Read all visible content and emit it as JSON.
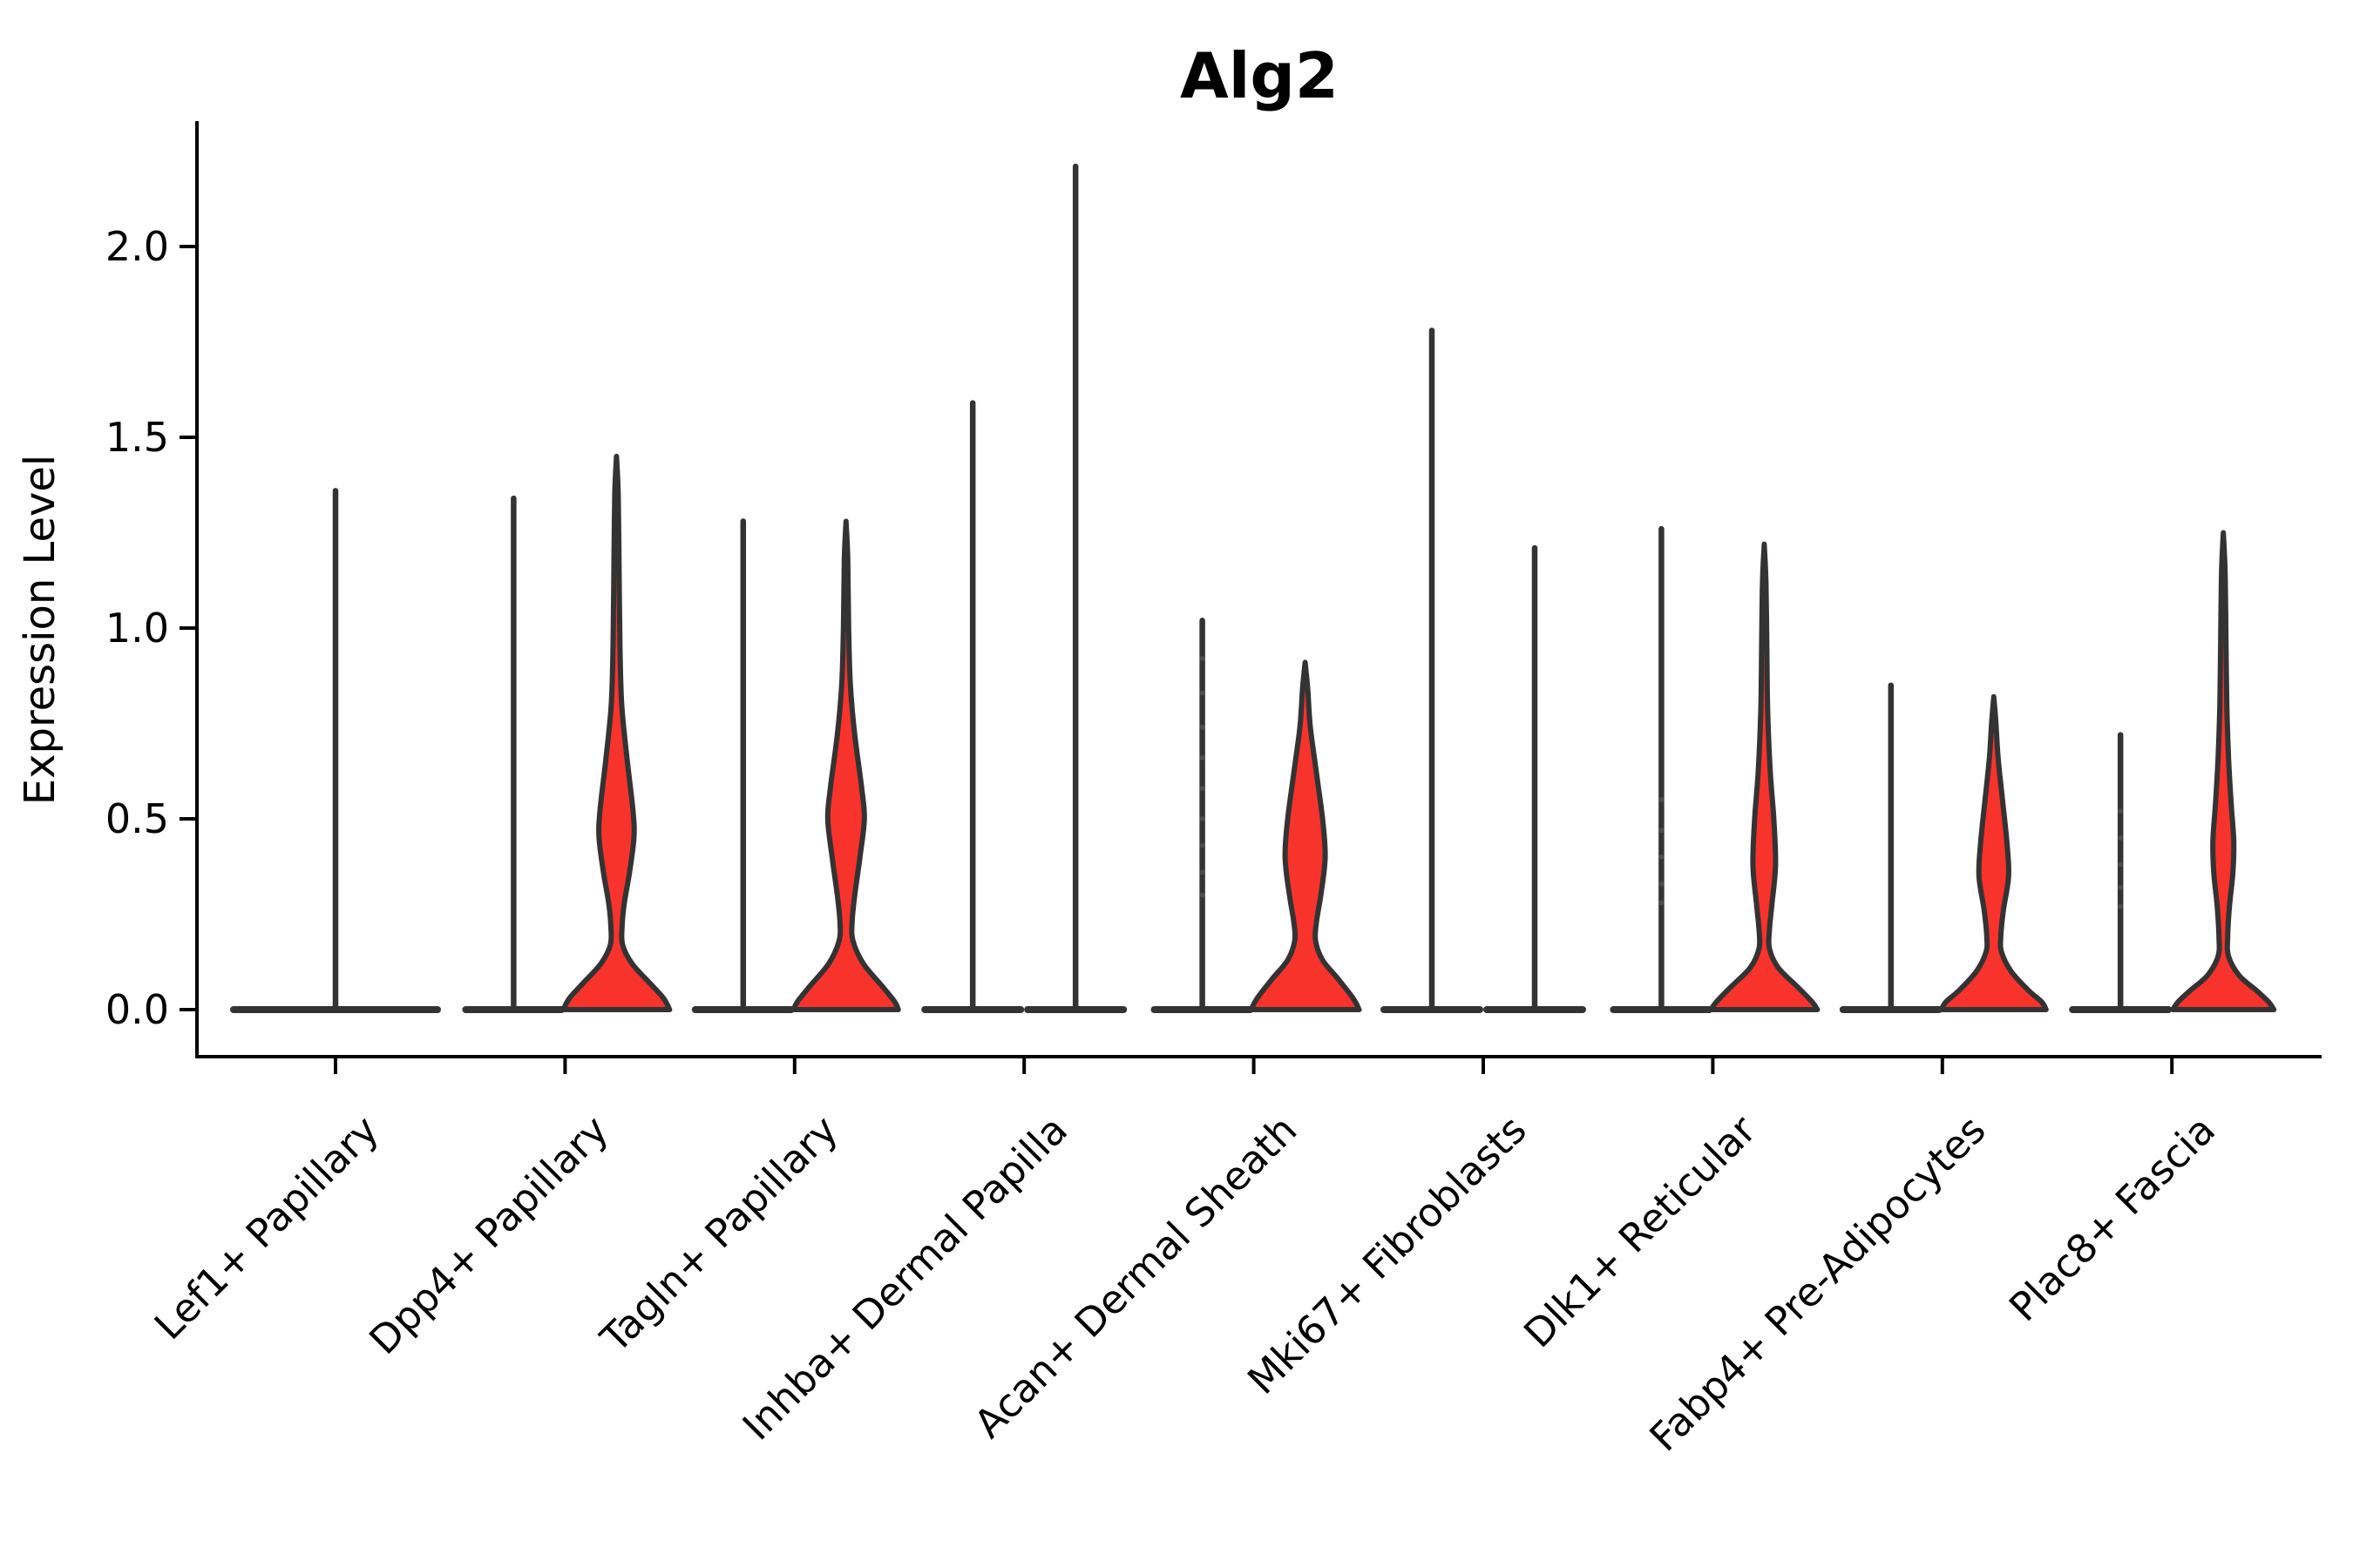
{
  "title": "Alg2",
  "y_axis": {
    "label": "Expression Level",
    "tick_labels": [
      "0.0",
      "0.5",
      "1.0",
      "1.5",
      "2.0"
    ],
    "tick_values": [
      0.0,
      0.5,
      1.0,
      1.5,
      2.0
    ]
  },
  "chart_data": {
    "type": "violin",
    "title": "Alg2",
    "ylabel": "Expression Level",
    "ylim": [
      0.0,
      2.3
    ],
    "yticks": [
      0.0,
      0.5,
      1.0,
      1.5,
      2.0
    ],
    "grid": false,
    "legend": "none",
    "fill_color": "#F8332C",
    "outline_color": "#333333",
    "axis_color": "#000000",
    "jitter_dot_color": "#666666",
    "categories": [
      {
        "label": "Lef1+ Papillary",
        "violins": [
          {
            "kind": "flat-spike",
            "offset": 0,
            "base_halfwidth": 121,
            "max_expression": 1.36
          }
        ]
      },
      {
        "label": "Dpp4+ Papillary",
        "violins": [
          {
            "kind": "flat-spike",
            "offset": -59,
            "base_halfwidth": 59,
            "max_expression": 1.34
          },
          {
            "kind": "shaped",
            "offset": 59,
            "max_expression": 1.45,
            "profile": [
              [
                1.45,
                0
              ],
              [
                1.35,
                2
              ],
              [
                1.15,
                3
              ],
              [
                0.95,
                4
              ],
              [
                0.8,
                6
              ],
              [
                0.66,
                12
              ],
              [
                0.52,
                19
              ],
              [
                0.45,
                20
              ],
              [
                0.36,
                15
              ],
              [
                0.28,
                9
              ],
              [
                0.22,
                6.5
              ],
              [
                0.17,
                7
              ],
              [
                0.12,
                18
              ],
              [
                0.07,
                38
              ],
              [
                0.03,
                54
              ],
              [
                0.0,
                61
              ]
            ]
          }
        ]
      },
      {
        "label": "Tagln+ Papillary",
        "violins": [
          {
            "kind": "flat-spike",
            "offset": -59,
            "base_halfwidth": 59,
            "max_expression": 1.28
          },
          {
            "kind": "shaped",
            "offset": 59,
            "max_expression": 1.28,
            "profile": [
              [
                1.28,
                0
              ],
              [
                1.18,
                2
              ],
              [
                1.0,
                3
              ],
              [
                0.85,
                5
              ],
              [
                0.72,
                10
              ],
              [
                0.58,
                18
              ],
              [
                0.5,
                21
              ],
              [
                0.4,
                16
              ],
              [
                0.3,
                10
              ],
              [
                0.23,
                7
              ],
              [
                0.18,
                8
              ],
              [
                0.12,
                20
              ],
              [
                0.06,
                42
              ],
              [
                0.02,
                56
              ],
              [
                0.0,
                60
              ]
            ]
          }
        ]
      },
      {
        "label": "Inhba+ Dermal Papilla",
        "violins": [
          {
            "kind": "flat-spike",
            "offset": -59,
            "base_halfwidth": 59,
            "max_expression": 1.59
          },
          {
            "kind": "flat-spike",
            "offset": 59,
            "base_halfwidth": 59,
            "max_expression": 2.21
          }
        ]
      },
      {
        "label": "Acan+ Dermal Sheath",
        "violins": [
          {
            "kind": "flat-spike",
            "offset": -59,
            "base_halfwidth": 59,
            "max_expression": 1.02,
            "jitter_values": [
              0.92,
              0.83,
              0.74,
              0.66,
              0.58,
              0.5,
              0.43,
              0.36,
              0.3
            ]
          },
          {
            "kind": "shaped",
            "offset": 59,
            "max_expression": 0.91,
            "profile": [
              [
                0.91,
                0
              ],
              [
                0.84,
                3
              ],
              [
                0.74,
                6
              ],
              [
                0.62,
                13
              ],
              [
                0.5,
                20
              ],
              [
                0.4,
                23
              ],
              [
                0.3,
                18
              ],
              [
                0.23,
                13
              ],
              [
                0.18,
                12
              ],
              [
                0.13,
                20
              ],
              [
                0.08,
                38
              ],
              [
                0.03,
                55
              ],
              [
                0.0,
                62
              ]
            ]
          }
        ]
      },
      {
        "label": "Mki67+ Fibroblasts",
        "violins": [
          {
            "kind": "flat-spike",
            "offset": -59,
            "base_halfwidth": 59,
            "max_expression": 1.78
          },
          {
            "kind": "flat-spike",
            "offset": 59,
            "base_halfwidth": 59,
            "max_expression": 1.21
          }
        ]
      },
      {
        "label": "Dlk1+ Reticular",
        "violins": [
          {
            "kind": "flat-spike",
            "offset": -59,
            "base_halfwidth": 59,
            "max_expression": 1.26,
            "jitter_values": [
              0.55,
              0.47,
              0.4,
              0.33,
              0.28
            ]
          },
          {
            "kind": "shaped",
            "offset": 59,
            "max_expression": 1.22,
            "profile": [
              [
                1.22,
                0
              ],
              [
                1.12,
                2
              ],
              [
                0.95,
                3
              ],
              [
                0.78,
                4
              ],
              [
                0.62,
                7
              ],
              [
                0.5,
                11
              ],
              [
                0.38,
                13
              ],
              [
                0.28,
                9
              ],
              [
                0.21,
                6
              ],
              [
                0.16,
                6
              ],
              [
                0.11,
                16
              ],
              [
                0.06,
                38
              ],
              [
                0.02,
                55
              ],
              [
                0.0,
                61
              ]
            ]
          }
        ]
      },
      {
        "label": "Fabp4+ Pre-Adipocytes",
        "violins": [
          {
            "kind": "flat-spike",
            "offset": -59,
            "base_halfwidth": 59,
            "max_expression": 0.85
          },
          {
            "kind": "shaped",
            "offset": 59,
            "max_expression": 0.82,
            "profile": [
              [
                0.82,
                0
              ],
              [
                0.75,
                2.5
              ],
              [
                0.66,
                5
              ],
              [
                0.55,
                10
              ],
              [
                0.44,
                15
              ],
              [
                0.35,
                17
              ],
              [
                0.26,
                11
              ],
              [
                0.19,
                8
              ],
              [
                0.15,
                9
              ],
              [
                0.1,
                20
              ],
              [
                0.05,
                40
              ],
              [
                0.02,
                55
              ],
              [
                0.0,
                60
              ]
            ]
          }
        ]
      },
      {
        "label": "Plac8+ Fascia",
        "violins": [
          {
            "kind": "flat-spike",
            "offset": -59,
            "base_halfwidth": 59,
            "max_expression": 0.72,
            "jitter_values": [
              0.52,
              0.45,
              0.38,
              0.32,
              0.27
            ]
          },
          {
            "kind": "shaped",
            "offset": 59,
            "max_expression": 1.25,
            "profile": [
              [
                1.25,
                0
              ],
              [
                1.15,
                2
              ],
              [
                0.98,
                3
              ],
              [
                0.8,
                4
              ],
              [
                0.66,
                6
              ],
              [
                0.54,
                9
              ],
              [
                0.44,
                12
              ],
              [
                0.36,
                11
              ],
              [
                0.27,
                7
              ],
              [
                0.19,
                5
              ],
              [
                0.14,
                6
              ],
              [
                0.09,
                18
              ],
              [
                0.05,
                38
              ],
              [
                0.02,
                52
              ],
              [
                0.0,
                58
              ]
            ]
          }
        ]
      }
    ]
  }
}
